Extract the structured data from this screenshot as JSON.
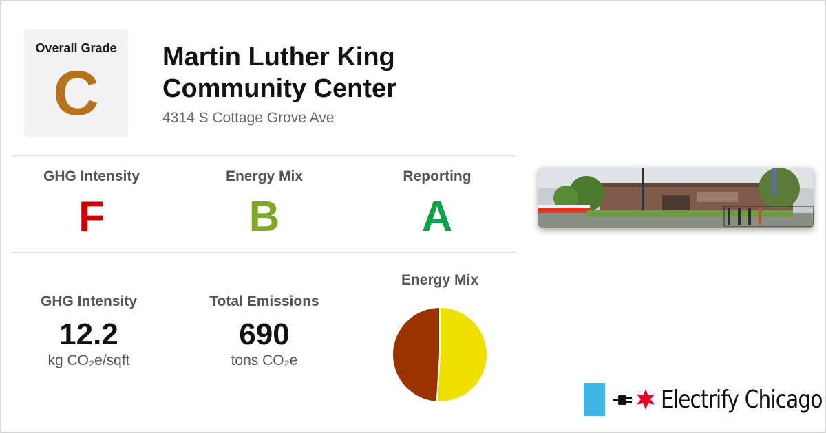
{
  "overall": {
    "label": "Overall Grade",
    "grade": "C"
  },
  "building": {
    "name": "Martin Luther King Community Center",
    "address": "4314 S Cottage Grove Ave"
  },
  "grades": [
    {
      "label": "GHG Intensity",
      "grade": "F",
      "color": "#cc0000"
    },
    {
      "label": "Energy Mix",
      "grade": "B",
      "color": "#7fa82b"
    },
    {
      "label": "Reporting",
      "grade": "A",
      "color": "#0ea04a"
    }
  ],
  "stats": {
    "ghg": {
      "label": "GHG Intensity",
      "value": "12.2",
      "unit": "kg CO₂e/sqft"
    },
    "emissions": {
      "label": "Total Emissions",
      "value": "690",
      "unit": "tons CO₂e"
    }
  },
  "energy_mix": {
    "label": "Energy Mix",
    "slices": [
      {
        "fraction": 0.51,
        "color": "#f0e000"
      },
      {
        "fraction": 0.49,
        "color": "#993300"
      }
    ]
  },
  "brand": {
    "name": "Electrify Chicago",
    "accent": "#41b6e6",
    "star_color": "#e4002b"
  },
  "icons": {
    "plug": "plug-icon",
    "star": "chicago-star-icon"
  }
}
